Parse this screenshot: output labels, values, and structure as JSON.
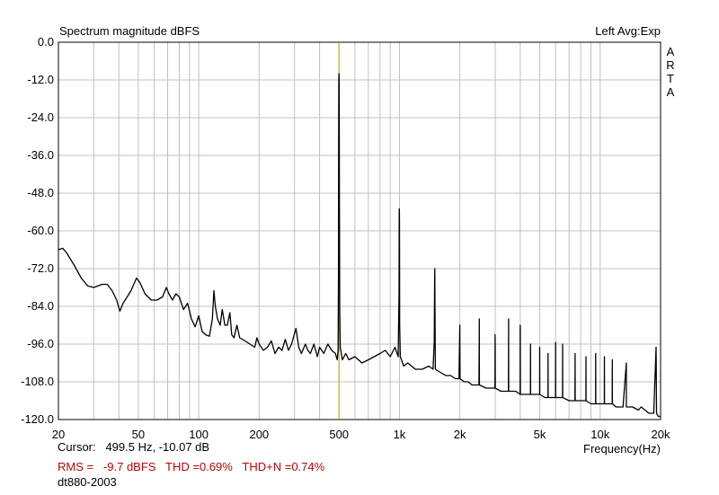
{
  "chart_data": {
    "type": "line",
    "title": "Spectrum magnitude dBFS",
    "top_right_text": "Left  Avg:Exp",
    "brand": [
      "A",
      "R",
      "T",
      "A"
    ],
    "xlabel": "Frequency(Hz)",
    "ylabel": "",
    "x_scale": "log",
    "xlim": [
      20,
      20000
    ],
    "ylim": [
      -120,
      0
    ],
    "grid": true,
    "y_ticks": [
      "0.0",
      "-12.0",
      "-24.0",
      "-36.0",
      "-48.0",
      "-60.0",
      "-72.0",
      "-84.0",
      "-96.0",
      "-108.0",
      "-120.0"
    ],
    "x_ticks": [
      {
        "value": 20,
        "label": "20"
      },
      {
        "value": 50,
        "label": "50"
      },
      {
        "value": 100,
        "label": "100"
      },
      {
        "value": 200,
        "label": "200"
      },
      {
        "value": 500,
        "label": "500"
      },
      {
        "value": 1000,
        "label": "1k"
      },
      {
        "value": 2000,
        "label": "2k"
      },
      {
        "value": 5000,
        "label": "5k"
      },
      {
        "value": 10000,
        "label": "10k"
      },
      {
        "value": 20000,
        "label": "20k"
      }
    ],
    "cursor_frequency": 499.5,
    "series": [
      {
        "color": "#000000",
        "points": [
          [
            20,
            -66
          ],
          [
            21,
            -65.5
          ],
          [
            22,
            -67
          ],
          [
            24,
            -71
          ],
          [
            26,
            -75
          ],
          [
            28,
            -77.5
          ],
          [
            30,
            -78
          ],
          [
            33,
            -77
          ],
          [
            35,
            -77
          ],
          [
            37,
            -79
          ],
          [
            39,
            -82
          ],
          [
            40.5,
            -85.5
          ],
          [
            42,
            -83
          ],
          [
            44,
            -81
          ],
          [
            46,
            -79
          ],
          [
            49,
            -75
          ],
          [
            51,
            -76.5
          ],
          [
            54,
            -80
          ],
          [
            58,
            -82
          ],
          [
            62,
            -82
          ],
          [
            66,
            -81
          ],
          [
            69,
            -78
          ],
          [
            71,
            -80
          ],
          [
            74,
            -82
          ],
          [
            77,
            -80
          ],
          [
            80,
            -81
          ],
          [
            84,
            -85
          ],
          [
            88,
            -83
          ],
          [
            92,
            -88
          ],
          [
            96,
            -90.5
          ],
          [
            100,
            -87
          ],
          [
            104,
            -92
          ],
          [
            108,
            -93
          ],
          [
            113,
            -93.5
          ],
          [
            117,
            -88
          ],
          [
            119,
            -79
          ],
          [
            121,
            -84
          ],
          [
            124,
            -88
          ],
          [
            128,
            -90
          ],
          [
            131,
            -85
          ],
          [
            135,
            -90
          ],
          [
            139,
            -90
          ],
          [
            143,
            -86
          ],
          [
            146,
            -93
          ],
          [
            150,
            -94
          ],
          [
            155,
            -90
          ],
          [
            160,
            -94
          ],
          [
            170,
            -95
          ],
          [
            180,
            -96
          ],
          [
            190,
            -97
          ],
          [
            195,
            -94
          ],
          [
            200,
            -96
          ],
          [
            210,
            -98
          ],
          [
            220,
            -97
          ],
          [
            230,
            -95
          ],
          [
            240,
            -99
          ],
          [
            250,
            -97
          ],
          [
            260,
            -98
          ],
          [
            270,
            -94.5
          ],
          [
            280,
            -98
          ],
          [
            290,
            -96
          ],
          [
            305,
            -91
          ],
          [
            315,
            -97
          ],
          [
            325,
            -99
          ],
          [
            340,
            -96
          ],
          [
            350,
            -98
          ],
          [
            360,
            -99
          ],
          [
            375,
            -96
          ],
          [
            390,
            -100
          ],
          [
            400,
            -97
          ],
          [
            420,
            -99
          ],
          [
            440,
            -96
          ],
          [
            460,
            -98
          ],
          [
            480,
            -99
          ],
          [
            490,
            -101
          ],
          [
            495,
            -98
          ],
          [
            497,
            -75
          ],
          [
            498,
            -30
          ],
          [
            499,
            -11
          ],
          [
            499.5,
            -10.07
          ],
          [
            500,
            -10.5
          ],
          [
            501,
            -12
          ],
          [
            502,
            -45
          ],
          [
            504,
            -85
          ],
          [
            507,
            -97
          ],
          [
            520,
            -101
          ],
          [
            540,
            -99
          ],
          [
            560,
            -101
          ],
          [
            600,
            -100
          ],
          [
            650,
            -102
          ],
          [
            700,
            -101
          ],
          [
            750,
            -100
          ],
          [
            800,
            -99
          ],
          [
            850,
            -98
          ],
          [
            900,
            -100
          ],
          [
            950,
            -97
          ],
          [
            985,
            -100
          ],
          [
            996,
            -80
          ],
          [
            998,
            -55
          ],
          [
            999,
            -53
          ],
          [
            1000,
            -53.5
          ],
          [
            1001,
            -58
          ],
          [
            1003,
            -90
          ],
          [
            1010,
            -100
          ],
          [
            1050,
            -103
          ],
          [
            1100,
            -102
          ],
          [
            1200,
            -104
          ],
          [
            1300,
            -104
          ],
          [
            1400,
            -103
          ],
          [
            1470,
            -104
          ],
          [
            1492,
            -95
          ],
          [
            1498,
            -75
          ],
          [
            1500,
            -72
          ],
          [
            1502,
            -80
          ],
          [
            1510,
            -104
          ],
          [
            1600,
            -105
          ],
          [
            1700,
            -106
          ],
          [
            1800,
            -106
          ],
          [
            1900,
            -107
          ],
          [
            1980,
            -107
          ],
          [
            1998,
            -90
          ],
          [
            2000,
            -96
          ],
          [
            2004,
            -107
          ],
          [
            2100,
            -108
          ],
          [
            2200,
            -108
          ],
          [
            2300,
            -109
          ],
          [
            2400,
            -109
          ],
          [
            2490,
            -109
          ],
          [
            2498,
            -95
          ],
          [
            2500,
            -88
          ],
          [
            2503,
            -109
          ],
          [
            2700,
            -110
          ],
          [
            2900,
            -110
          ],
          [
            2990,
            -110
          ],
          [
            2998,
            -93
          ],
          [
            3000,
            -96
          ],
          [
            3003,
            -110
          ],
          [
            3200,
            -111
          ],
          [
            3400,
            -111
          ],
          [
            3490,
            -111
          ],
          [
            3498,
            -91
          ],
          [
            3500,
            -88
          ],
          [
            3503,
            -111
          ],
          [
            3800,
            -111
          ],
          [
            3990,
            -112
          ],
          [
            3998,
            -90
          ],
          [
            4000,
            -91
          ],
          [
            4003,
            -112
          ],
          [
            4300,
            -112
          ],
          [
            4495,
            -112
          ],
          [
            4500,
            -96
          ],
          [
            4505,
            -112
          ],
          [
            4800,
            -112
          ],
          [
            4995,
            -112
          ],
          [
            5000,
            -97
          ],
          [
            5005,
            -112
          ],
          [
            5300,
            -113
          ],
          [
            5495,
            -113
          ],
          [
            5500,
            -99
          ],
          [
            5505,
            -113
          ],
          [
            5800,
            -113
          ],
          [
            5995,
            -113
          ],
          [
            6000,
            -95.5
          ],
          [
            6005,
            -113
          ],
          [
            6300,
            -113
          ],
          [
            6495,
            -113
          ],
          [
            6500,
            -96
          ],
          [
            6505,
            -113
          ],
          [
            7000,
            -114
          ],
          [
            7490,
            -114
          ],
          [
            7500,
            -99
          ],
          [
            7510,
            -114
          ],
          [
            8000,
            -114
          ],
          [
            8490,
            -114
          ],
          [
            8500,
            -100
          ],
          [
            8510,
            -114
          ],
          [
            9000,
            -115
          ],
          [
            9490,
            -115
          ],
          [
            9500,
            -99
          ],
          [
            9510,
            -115
          ],
          [
            10000,
            -115
          ],
          [
            10490,
            -115
          ],
          [
            10500,
            -100
          ],
          [
            10510,
            -115
          ],
          [
            11000,
            -115
          ],
          [
            11490,
            -115
          ],
          [
            11500,
            -101
          ],
          [
            11510,
            -115
          ],
          [
            12000,
            -116
          ],
          [
            12500,
            -116
          ],
          [
            13000,
            -116
          ],
          [
            13500,
            -102
          ],
          [
            13510,
            -116
          ],
          [
            14500,
            -116
          ],
          [
            15500,
            -117
          ],
          [
            16000,
            -116
          ],
          [
            17500,
            -118
          ],
          [
            18500,
            -118
          ],
          [
            19000,
            -97
          ],
          [
            19100,
            -118
          ],
          [
            19500,
            -119
          ],
          [
            20000,
            -119
          ]
        ]
      }
    ]
  },
  "footer": {
    "cursor_line": "Cursor:   499.5 Hz, -10.07 dB",
    "rms_line": "RMS =   -9.7 dBFS   THD =0.69%   THD+N =0.74%",
    "name_line": "dt880-2003"
  }
}
